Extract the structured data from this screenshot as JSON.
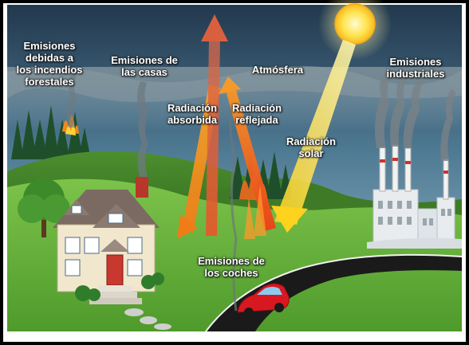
{
  "labels": {
    "emisiones_incendios": [
      "Emisiones",
      "debidas a",
      "los incendios",
      "forestales"
    ],
    "emisiones_casas": [
      "Emisiones de",
      "las casas"
    ],
    "atmosfera": "Atmósfera",
    "emisiones_industriales": [
      "Emisiones",
      "industriales"
    ],
    "radiacion_absorbida": [
      "Radiación",
      "absorbida"
    ],
    "radiacion_reflejada": [
      "Radiación",
      "reflejada"
    ],
    "radiacion_solar": [
      "Radiación",
      "solar"
    ],
    "emisiones_coches": [
      "Emisiones de",
      "los coches"
    ]
  },
  "colors": {
    "sky_top": "#2f4a63",
    "sky_band": "#8fb4c8",
    "ground": "#5fa33a",
    "road": "#1c1c1c",
    "sun": "#ffe04a",
    "arrow_red": "#e8481f",
    "arrow_orange": "#f39a1d",
    "solar_beam": "#ffd83a",
    "car": "#d81820"
  }
}
